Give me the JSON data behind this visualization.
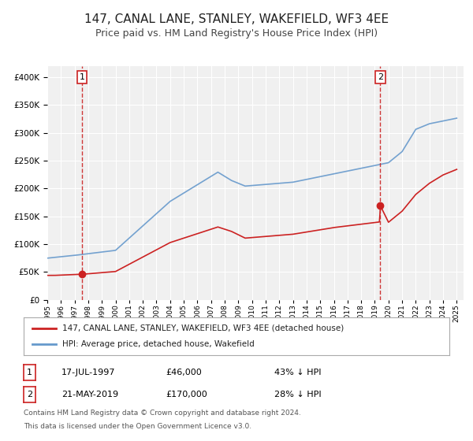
{
  "title": "147, CANAL LANE, STANLEY, WAKEFIELD, WF3 4EE",
  "subtitle": "Price paid vs. HM Land Registry's House Price Index (HPI)",
  "title_fontsize": 11,
  "subtitle_fontsize": 9,
  "background_color": "#ffffff",
  "plot_bg_color": "#f0f0f0",
  "grid_color": "#ffffff",
  "sale1_date_num": 1997.54,
  "sale1_price": 46000,
  "sale1_label": "17-JUL-1997",
  "sale1_amount": "£46,000",
  "sale1_pct": "43% ↓ HPI",
  "sale2_date_num": 2019.39,
  "sale2_price": 170000,
  "sale2_label": "21-MAY-2019",
  "sale2_amount": "£170,000",
  "sale2_pct": "28% ↓ HPI",
  "hpi_line_color": "#6699cc",
  "property_line_color": "#cc2222",
  "vline_color": "#cc2222",
  "dot_color": "#cc2222",
  "marker_box_color": "#cc2222",
  "ylim": [
    0,
    420000
  ],
  "xlim_start": 1995.0,
  "xlim_end": 2025.5,
  "legend_label_property": "147, CANAL LANE, STANLEY, WAKEFIELD, WF3 4EE (detached house)",
  "legend_label_hpi": "HPI: Average price, detached house, Wakefield",
  "footer1": "Contains HM Land Registry data © Crown copyright and database right 2024.",
  "footer2": "This data is licensed under the Open Government Licence v3.0."
}
